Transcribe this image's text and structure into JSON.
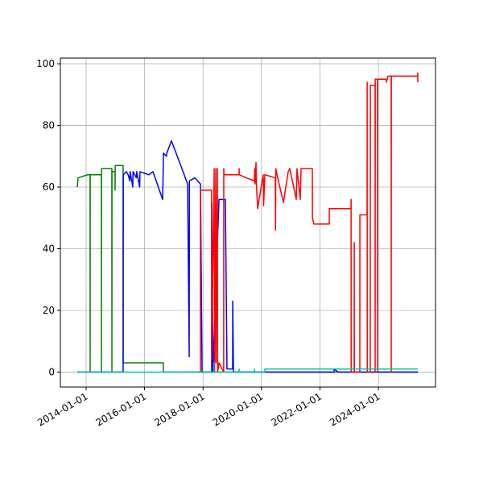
{
  "chart_data": {
    "type": "line",
    "xlim": [
      "2013-02-13",
      "2025-12-15"
    ],
    "ylim": [
      -4.85,
      101.85
    ],
    "xticks": [
      "2014-01-01",
      "2016-01-01",
      "2018-01-01",
      "2020-01-01",
      "2022-01-01",
      "2024-01-01"
    ],
    "yticks": [
      0,
      20,
      40,
      60,
      80,
      100
    ],
    "grid": true,
    "series": [
      {
        "color": "#008000",
        "x": [
          "2013-09-12",
          "2013-09-22",
          "2014-01-21",
          "2014-02-19",
          "2014-02-20",
          "2014-02-21",
          "2014-07-10",
          "2014-07-11",
          "2014-07-12",
          "2014-11-18",
          "2014-11-19",
          "2014-11-20",
          "2014-12-28",
          "2014-12-29",
          "2014-12-30",
          "2015-04-08",
          "2015-04-09",
          "2016-08-23",
          "2016-08-24",
          "2025-05-08"
        ],
        "values": [
          60,
          63,
          64,
          64,
          0,
          64,
          64,
          0,
          66,
          66,
          0,
          65,
          65,
          59,
          67,
          67,
          3,
          3,
          0,
          0
        ]
      },
      {
        "color": "#0000ff",
        "x": [
          "2013-09-12",
          "2015-04-08",
          "2015-04-10",
          "2015-05-19",
          "2015-06-10",
          "2015-07-01",
          "2015-07-05",
          "2015-08-07",
          "2015-08-10",
          "2015-09-20",
          "2015-09-25",
          "2015-11-01",
          "2015-11-05",
          "2016-02-25",
          "2016-04-15",
          "2016-08-14",
          "2016-08-20",
          "2016-08-24",
          "2016-10-01",
          "2016-10-05",
          "2016-12-02",
          "2017-04-12",
          "2017-06-22",
          "2017-07-12",
          "2017-07-14",
          "2017-09-20",
          "2017-11-30",
          "2017-12-20",
          "2018-04-19",
          "2018-04-20",
          "2018-05-05",
          "2018-05-10",
          "2018-07-19",
          "2018-10-07",
          "2018-10-27",
          "2019-01-06",
          "2019-01-07",
          "2019-01-16",
          "2022-06-26",
          "2022-06-27",
          "2022-08-16",
          "2025-05-08"
        ],
        "values": [
          0,
          0,
          64,
          65,
          64,
          62,
          65,
          60,
          65,
          63,
          65,
          60,
          65,
          64,
          65,
          56,
          64,
          71,
          70,
          71,
          75,
          66,
          61,
          5,
          62,
          63,
          61,
          0,
          0,
          55,
          0,
          4,
          56,
          56,
          1,
          1,
          23,
          0,
          0,
          1,
          0,
          0
        ]
      },
      {
        "color": "#ff0000",
        "x": [
          "2017-10-19",
          "2017-11-29",
          "2017-11-30",
          "2018-04-18",
          "2018-04-19",
          "2018-05-20",
          "2018-05-25",
          "2018-06-09",
          "2018-06-12",
          "2018-06-29",
          "2018-07-02",
          "2018-07-19",
          "2018-09-16",
          "2018-09-17",
          "2018-09-20",
          "2019-03-27",
          "2019-03-28",
          "2019-03-29",
          "2019-06-26",
          "2019-10-05",
          "2019-10-08",
          "2019-10-12",
          "2019-10-25",
          "2019-10-28",
          "2019-11-14",
          "2020-01-23",
          "2020-01-28",
          "2020-02-12",
          "2020-06-22",
          "2020-06-25",
          "2020-06-28",
          "2020-07-22",
          "2020-10-01",
          "2020-11-30",
          "2020-12-20",
          "2021-03-11",
          "2021-03-20",
          "2021-04-30",
          "2021-05-10",
          "2021-09-28",
          "2021-09-29",
          "2021-10-18",
          "2022-04-27",
          "2022-04-28",
          "2023-01-24",
          "2023-01-25",
          "2023-01-26",
          "2023-03-05",
          "2023-03-06",
          "2023-03-07",
          "2023-05-14",
          "2023-05-15",
          "2023-08-13",
          "2023-08-14",
          "2023-08-15",
          "2023-09-22",
          "2023-09-23",
          "2023-11-21",
          "2023-11-22",
          "2023-11-23",
          "2023-12-21",
          "2023-12-22",
          "2023-12-23",
          "2024-04-10",
          "2024-04-11",
          "2024-04-30",
          "2024-06-09",
          "2024-06-10",
          "2024-06-11",
          "2025-05-06",
          "2025-05-07",
          "2025-05-08"
        ],
        "values": [
          0,
          0,
          59,
          59,
          4,
          66,
          0,
          66,
          3,
          66,
          0,
          3,
          0,
          66,
          64,
          64,
          66,
          64,
          63,
          62,
          66,
          61,
          68,
          62,
          53,
          64,
          54,
          64,
          63,
          46,
          66,
          63,
          55,
          65,
          66,
          56,
          66,
          56,
          66,
          66,
          50,
          48,
          48,
          53,
          53,
          56,
          0,
          0,
          42,
          0,
          0,
          51,
          51,
          94,
          0,
          0,
          93,
          93,
          0,
          95,
          95,
          0,
          95,
          95,
          94,
          96,
          96,
          0,
          96,
          96,
          97,
          94
        ]
      },
      {
        "color": "#00bfbf",
        "x": [
          "2013-09-12",
          "2018-05-15",
          "2018-05-16",
          "2018-05-17",
          "2019-03-27",
          "2019-03-28",
          "2019-03-29",
          "2019-10-05",
          "2019-10-06",
          "2019-10-07",
          "2020-02-12",
          "2020-02-13",
          "2025-05-08"
        ],
        "values": [
          0,
          0,
          3,
          0,
          0,
          1,
          0,
          0,
          1,
          0,
          0,
          1,
          1
        ]
      }
    ]
  }
}
